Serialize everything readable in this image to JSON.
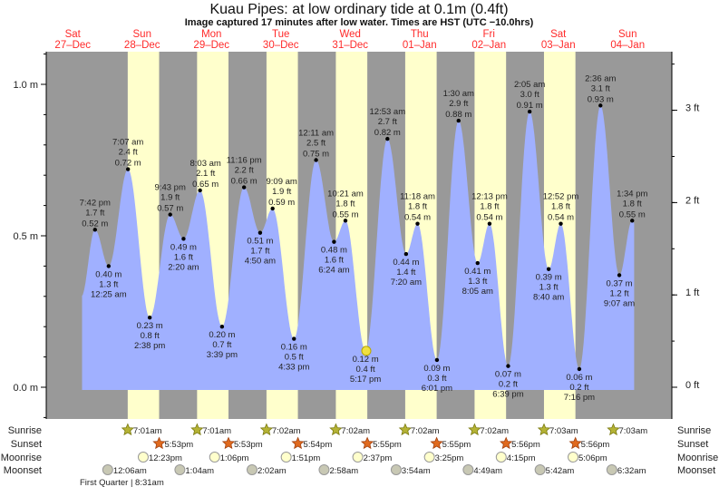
{
  "chart_data": {
    "type": "area",
    "title": "Kuau Pipes: at low  ordinary tide at 0.1m (0.4ft)",
    "subtitle": "Image captured 17 minutes after low water. Times are HST (UTC −10.0hrs)",
    "days": [
      {
        "dow": "Sat",
        "date": "27–Dec"
      },
      {
        "dow": "Sun",
        "date": "28–Dec"
      },
      {
        "dow": "Mon",
        "date": "29–Dec"
      },
      {
        "dow": "Tue",
        "date": "30–Dec"
      },
      {
        "dow": "Wed",
        "date": "31–Dec"
      },
      {
        "dow": "Thu",
        "date": "01–Jan"
      },
      {
        "dow": "Fri",
        "date": "02–Jan"
      },
      {
        "dow": "Sat",
        "date": "03–Jan"
      },
      {
        "dow": "Sun",
        "date": "04–Jan"
      }
    ],
    "y_left_ticks": [
      {
        "v": 0,
        "label": "0.0 m"
      },
      {
        "v": 0.5,
        "label": "0.5 m"
      },
      {
        "v": 1.0,
        "label": "1.0 m"
      }
    ],
    "y_right_ticks": [
      {
        "v": 0,
        "label": "0 ft"
      },
      {
        "v": 1,
        "label": "1 ft"
      },
      {
        "v": 2,
        "label": "2 ft"
      },
      {
        "v": 3,
        "label": "3 ft"
      }
    ],
    "ylim_m": [
      -0.1,
      1.11
    ],
    "current": {
      "day": 4,
      "time": "5:34 pm",
      "height": 0.12
    },
    "tides": [
      {
        "day": 0,
        "time": "7:42 pm",
        "ft": "1.7 ft",
        "m": "0.52 m",
        "height": 0.52,
        "type": "high"
      },
      {
        "day": 1,
        "time": "12:25 am",
        "ft": "1.3 ft",
        "m": "0.40 m",
        "height": 0.4,
        "type": "low"
      },
      {
        "day": 1,
        "time": "7:07 am",
        "ft": "2.4 ft",
        "m": "0.72 m",
        "height": 0.72,
        "type": "high"
      },
      {
        "day": 1,
        "time": "2:38 pm",
        "ft": "0.8 ft",
        "m": "0.23 m",
        "height": 0.23,
        "type": "low"
      },
      {
        "day": 1,
        "time": "9:43 pm",
        "ft": "1.9 ft",
        "m": "0.57 m",
        "height": 0.57,
        "type": "high"
      },
      {
        "day": 2,
        "time": "2:20 am",
        "ft": "1.6 ft",
        "m": "0.49 m",
        "height": 0.49,
        "type": "low"
      },
      {
        "day": 2,
        "time": "8:03 am",
        "ft": "2.1 ft",
        "m": "0.65 m",
        "height": 0.65,
        "type": "high"
      },
      {
        "day": 2,
        "time": "3:39 pm",
        "ft": "0.7 ft",
        "m": "0.20 m",
        "height": 0.2,
        "type": "low"
      },
      {
        "day": 2,
        "time": "11:16 pm",
        "ft": "2.2 ft",
        "m": "0.66 m",
        "height": 0.66,
        "type": "high"
      },
      {
        "day": 3,
        "time": "4:50 am",
        "ft": "1.7 ft",
        "m": "0.51 m",
        "height": 0.51,
        "type": "low"
      },
      {
        "day": 3,
        "time": "9:09 am",
        "ft": "1.9 ft",
        "m": "0.59 m",
        "height": 0.59,
        "type": "high"
      },
      {
        "day": 3,
        "time": "4:33 pm",
        "ft": "0.5 ft",
        "m": "0.16 m",
        "height": 0.16,
        "type": "low"
      },
      {
        "day": 4,
        "time": "12:11 am",
        "ft": "2.5 ft",
        "m": "0.75 m",
        "height": 0.75,
        "type": "high"
      },
      {
        "day": 4,
        "time": "6:24 am",
        "ft": "1.6 ft",
        "m": "0.48 m",
        "height": 0.48,
        "type": "low"
      },
      {
        "day": 4,
        "time": "10:21 am",
        "ft": "1.8 ft",
        "m": "0.55 m",
        "height": 0.55,
        "type": "high"
      },
      {
        "day": 4,
        "time": "5:17 pm",
        "ft": "0.4 ft",
        "m": "0.12 m",
        "height": 0.12,
        "type": "low"
      },
      {
        "day": 5,
        "time": "12:53 am",
        "ft": "2.7 ft",
        "m": "0.82 m",
        "height": 0.82,
        "type": "high"
      },
      {
        "day": 5,
        "time": "7:20 am",
        "ft": "1.4 ft",
        "m": "0.44 m",
        "height": 0.44,
        "type": "low"
      },
      {
        "day": 5,
        "time": "11:18 am",
        "ft": "1.8 ft",
        "m": "0.54 m",
        "height": 0.54,
        "type": "high"
      },
      {
        "day": 5,
        "time": "6:01 pm",
        "ft": "0.3 ft",
        "m": "0.09 m",
        "height": 0.09,
        "type": "low"
      },
      {
        "day": 6,
        "time": "1:30 am",
        "ft": "2.9 ft",
        "m": "0.88 m",
        "height": 0.88,
        "type": "high"
      },
      {
        "day": 6,
        "time": "8:05 am",
        "ft": "1.3 ft",
        "m": "0.41 m",
        "height": 0.41,
        "type": "low"
      },
      {
        "day": 6,
        "time": "12:13 pm",
        "ft": "1.8 ft",
        "m": "0.54 m",
        "height": 0.54,
        "type": "high"
      },
      {
        "day": 6,
        "time": "6:39 pm",
        "ft": "0.2 ft",
        "m": "0.07 m",
        "height": 0.07,
        "type": "low"
      },
      {
        "day": 7,
        "time": "2:05 am",
        "ft": "3.0 ft",
        "m": "0.91 m",
        "height": 0.91,
        "type": "high"
      },
      {
        "day": 7,
        "time": "8:40 am",
        "ft": "1.3 ft",
        "m": "0.39 m",
        "height": 0.39,
        "type": "low"
      },
      {
        "day": 7,
        "time": "12:52 pm",
        "ft": "1.8 ft",
        "m": "0.54 m",
        "height": 0.54,
        "type": "high"
      },
      {
        "day": 7,
        "time": "7:16 pm",
        "ft": "0.2 ft",
        "m": "0.06 m",
        "height": 0.06,
        "type": "low"
      },
      {
        "day": 8,
        "time": "2:36 am",
        "ft": "3.1 ft",
        "m": "0.93 m",
        "height": 0.93,
        "type": "high"
      },
      {
        "day": 8,
        "time": "9:07 am",
        "ft": "1.2 ft",
        "m": "0.37 m",
        "height": 0.37,
        "type": "low"
      },
      {
        "day": 8,
        "time": "1:34 pm",
        "ft": "1.8 ft",
        "m": "0.55 m",
        "height": 0.55,
        "type": "high"
      }
    ],
    "rows": {
      "sunrise": "Sunrise",
      "sunset": "Sunset",
      "moonrise": "Moonrise",
      "moonset": "Moonset"
    },
    "sunrise": [
      {
        "day": 1,
        "time": "7:01am"
      },
      {
        "day": 2,
        "time": "7:01am"
      },
      {
        "day": 3,
        "time": "7:02am"
      },
      {
        "day": 4,
        "time": "7:02am"
      },
      {
        "day": 5,
        "time": "7:02am"
      },
      {
        "day": 6,
        "time": "7:02am"
      },
      {
        "day": 7,
        "time": "7:03am"
      },
      {
        "day": 8,
        "time": "7:03am"
      }
    ],
    "sunset": [
      {
        "day": 1,
        "time": "5:53pm"
      },
      {
        "day": 2,
        "time": "5:53pm"
      },
      {
        "day": 3,
        "time": "5:54pm"
      },
      {
        "day": 4,
        "time": "5:55pm"
      },
      {
        "day": 5,
        "time": "5:55pm"
      },
      {
        "day": 6,
        "time": "5:56pm"
      },
      {
        "day": 7,
        "time": "5:56pm"
      }
    ],
    "moonrise": [
      {
        "day": 1,
        "time": "12:23pm"
      },
      {
        "day": 2,
        "time": "1:06pm"
      },
      {
        "day": 3,
        "time": "1:51pm"
      },
      {
        "day": 4,
        "time": "2:37pm"
      },
      {
        "day": 5,
        "time": "3:25pm"
      },
      {
        "day": 6,
        "time": "4:15pm"
      },
      {
        "day": 7,
        "time": "5:06pm"
      }
    ],
    "moonset": [
      {
        "day": 1,
        "time": "12:06am"
      },
      {
        "day": 2,
        "time": "1:04am"
      },
      {
        "day": 3,
        "time": "2:02am"
      },
      {
        "day": 4,
        "time": "2:58am"
      },
      {
        "day": 5,
        "time": "3:54am"
      },
      {
        "day": 6,
        "time": "4:49am"
      },
      {
        "day": 7,
        "time": "5:42am"
      },
      {
        "day": 8,
        "time": "6:32am"
      }
    ],
    "moon_phase": "First Quarter | 8:31am",
    "colors": {
      "night": "#999999",
      "day": "#ffffcc",
      "water": "#a0b0ff",
      "dayLabel": "#ff2a2a",
      "sunrise": "#b5b335",
      "sunset": "#e06a1e",
      "moonrise": "#ffffcc",
      "moonset": "#c8c8b4",
      "current": "#f0e040"
    }
  }
}
